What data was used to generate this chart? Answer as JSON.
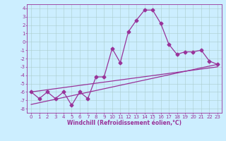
{
  "xlabel": "Windchill (Refroidissement éolien,°C)",
  "background_color": "#cceeff",
  "grid_color": "#aacccc",
  "line_color": "#993399",
  "ylim": [
    -8.5,
    4.5
  ],
  "xlim": [
    -0.5,
    23.5
  ],
  "yticks": [
    4,
    3,
    2,
    1,
    0,
    -1,
    -2,
    -3,
    -4,
    -5,
    -6,
    -7,
    -8
  ],
  "xticks": [
    0,
    1,
    2,
    3,
    4,
    5,
    6,
    7,
    8,
    9,
    10,
    11,
    12,
    13,
    14,
    15,
    16,
    17,
    18,
    19,
    20,
    21,
    22,
    23
  ],
  "line1_x": [
    0,
    1,
    2,
    3,
    4,
    5,
    6,
    7,
    8,
    9,
    10,
    11,
    12,
    13,
    14,
    15,
    16,
    17,
    18,
    19,
    20,
    21,
    22,
    23
  ],
  "line1_y": [
    -6.0,
    -6.8,
    -6.0,
    -6.8,
    -6.0,
    -7.6,
    -6.0,
    -6.8,
    -4.2,
    -4.2,
    -0.8,
    -2.5,
    1.2,
    2.6,
    3.8,
    3.8,
    2.2,
    -0.3,
    -1.5,
    -1.2,
    -1.2,
    -1.0,
    -2.3,
    -2.7
  ],
  "line2_x": [
    0,
    23
  ],
  "line2_y": [
    -7.5,
    -2.7
  ],
  "line3_x": [
    0,
    23
  ],
  "line3_y": [
    -6.0,
    -3.0
  ],
  "marker_size": 2.5,
  "line_width": 0.9,
  "tick_fontsize": 5.0,
  "xlabel_fontsize": 5.5
}
